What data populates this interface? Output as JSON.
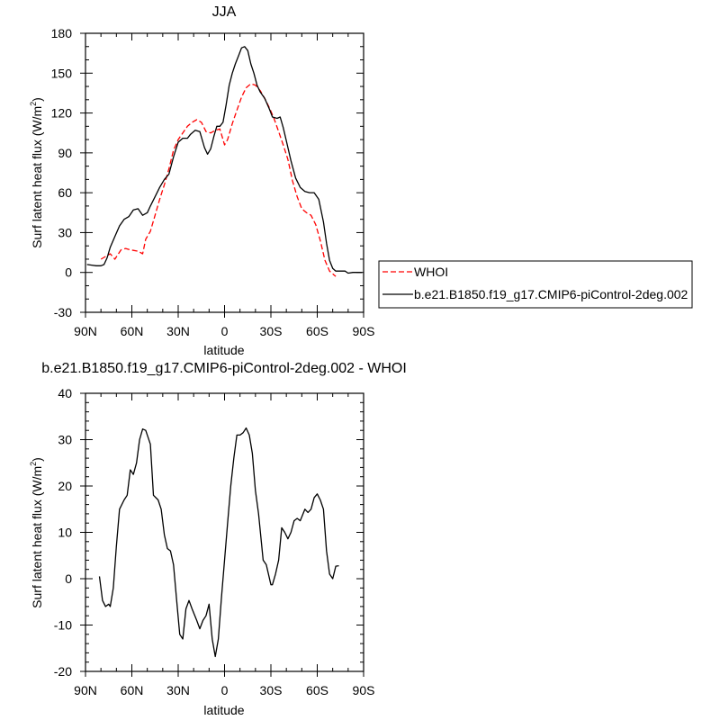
{
  "chart_data": [
    {
      "type": "line",
      "title": "JJA",
      "xlabel": "latitude",
      "ylabel": "Surf latent heat flux (W/m",
      "ylabel_sup": "2",
      "ylabel_close": ")",
      "xlim": [
        90,
        -90
      ],
      "ylim": [
        -30,
        180
      ],
      "xticks": [
        90,
        60,
        30,
        0,
        -30,
        -60,
        -90
      ],
      "xtick_labels": [
        "90N",
        "60N",
        "30N",
        "0",
        "30S",
        "60S",
        "90S"
      ],
      "yticks": [
        -30,
        0,
        30,
        60,
        90,
        120,
        150,
        180
      ],
      "legend_position": "right",
      "series": [
        {
          "name": "WHOI",
          "color": "#ff0000",
          "dash": "dashed",
          "points": [
            [
              80,
              10
            ],
            [
              77,
              12
            ],
            [
              74,
              14
            ],
            [
              71,
              10
            ],
            [
              67,
              17
            ],
            [
              64,
              18
            ],
            [
              61,
              17
            ],
            [
              56,
              16
            ],
            [
              53,
              14
            ],
            [
              51,
              25
            ],
            [
              48,
              31
            ],
            [
              45,
              43
            ],
            [
              42,
              55
            ],
            [
              39,
              66
            ],
            [
              36,
              78
            ],
            [
              33,
              92
            ],
            [
              30,
              100
            ],
            [
              27,
              105
            ],
            [
              24,
              110
            ],
            [
              21,
              113
            ],
            [
              18,
              115
            ],
            [
              15,
              113
            ],
            [
              12,
              106
            ],
            [
              9,
              105
            ],
            [
              6,
              107
            ],
            [
              3,
              108
            ],
            [
              1,
              100
            ],
            [
              0,
              96
            ],
            [
              -2,
              100
            ],
            [
              -5,
              112
            ],
            [
              -8,
              122
            ],
            [
              -11,
              132
            ],
            [
              -14,
              139
            ],
            [
              -17,
              142
            ],
            [
              -20,
              141
            ],
            [
              -23,
              137
            ],
            [
              -26,
              131
            ],
            [
              -29,
              124
            ],
            [
              -32,
              116
            ],
            [
              -35,
              106
            ],
            [
              -38,
              96
            ],
            [
              -41,
              85
            ],
            [
              -44,
              69
            ],
            [
              -47,
              57
            ],
            [
              -50,
              48
            ],
            [
              -53,
              45
            ],
            [
              -56,
              43
            ],
            [
              -59,
              36
            ],
            [
              -62,
              24
            ],
            [
              -65,
              9
            ],
            [
              -68,
              1
            ],
            [
              -71,
              -2
            ],
            [
              -72,
              -3
            ]
          ]
        },
        {
          "name": "b.e21.B1850.f19_g17.CMIP6-piControl-2deg.002",
          "color": "#000000",
          "dash": "solid",
          "points": [
            [
              89,
              6
            ],
            [
              86,
              5.5
            ],
            [
              83,
              5
            ],
            [
              80,
              5
            ],
            [
              78,
              6
            ],
            [
              76,
              11
            ],
            [
              74,
              19
            ],
            [
              71,
              27
            ],
            [
              68,
              35
            ],
            [
              65,
              40
            ],
            [
              62,
              42
            ],
            [
              59,
              47
            ],
            [
              56,
              48
            ],
            [
              53,
              43
            ],
            [
              50,
              45
            ],
            [
              48,
              50
            ],
            [
              45,
              57
            ],
            [
              42,
              64
            ],
            [
              39,
              70
            ],
            [
              36,
              74
            ],
            [
              33,
              87
            ],
            [
              30,
              98
            ],
            [
              27,
              101
            ],
            [
              24,
              101
            ],
            [
              22,
              104
            ],
            [
              19,
              107
            ],
            [
              16,
              106
            ],
            [
              13,
              94
            ],
            [
              11,
              89
            ],
            [
              9,
              93
            ],
            [
              7,
              102
            ],
            [
              5,
              110
            ],
            [
              3,
              110
            ],
            [
              1,
              113
            ],
            [
              -1,
              126
            ],
            [
              -3,
              141
            ],
            [
              -5,
              150
            ],
            [
              -7,
              157
            ],
            [
              -9,
              163
            ],
            [
              -11,
              169
            ],
            [
              -13,
              170
            ],
            [
              -15,
              167
            ],
            [
              -17,
              157
            ],
            [
              -19,
              150
            ],
            [
              -21,
              141
            ],
            [
              -23,
              136
            ],
            [
              -26,
              131
            ],
            [
              -29,
              123
            ],
            [
              -31,
              117
            ],
            [
              -34,
              116
            ],
            [
              -36,
              117
            ],
            [
              -38,
              109
            ],
            [
              -40,
              99
            ],
            [
              -43,
              84
            ],
            [
              -46,
              71
            ],
            [
              -49,
              64
            ],
            [
              -52,
              61
            ],
            [
              -55,
              60
            ],
            [
              -58,
              60
            ],
            [
              -61,
              55
            ],
            [
              -64,
              38
            ],
            [
              -66,
              22
            ],
            [
              -68,
              9
            ],
            [
              -70,
              3
            ],
            [
              -72,
              1
            ],
            [
              -74,
              1
            ],
            [
              -76,
              1
            ],
            [
              -78,
              1
            ],
            [
              -80,
              -0.5
            ],
            [
              -83,
              0
            ],
            [
              -86,
              0
            ],
            [
              -89,
              0
            ]
          ]
        }
      ]
    },
    {
      "type": "line",
      "title": "b.e21.B1850.f19_g17.CMIP6-piControl-2deg.002 - WHOI",
      "xlabel": "latitude",
      "ylabel": "Surf latent heat flux (W/m",
      "ylabel_sup": "2",
      "ylabel_close": ")",
      "xlim": [
        90,
        -90
      ],
      "ylim": [
        -20,
        40
      ],
      "xticks": [
        90,
        60,
        30,
        0,
        -30,
        -60,
        -90
      ],
      "xtick_labels": [
        "90N",
        "60N",
        "30N",
        "0",
        "30S",
        "60S",
        "90S"
      ],
      "yticks": [
        -20,
        -10,
        0,
        10,
        20,
        30,
        40
      ],
      "series": [
        {
          "color": "#000000",
          "dash": "solid",
          "points": [
            [
              81,
              0.5
            ],
            [
              79,
              -4.7
            ],
            [
              77,
              -6
            ],
            [
              75,
              -5.5
            ],
            [
              74,
              -6
            ],
            [
              72,
              -2
            ],
            [
              70,
              7
            ],
            [
              68,
              15
            ],
            [
              65,
              17
            ],
            [
              63,
              18
            ],
            [
              61,
              23.5
            ],
            [
              59,
              22.5
            ],
            [
              57,
              25
            ],
            [
              55,
              30
            ],
            [
              53,
              32.3
            ],
            [
              51,
              32
            ],
            [
              48,
              29
            ],
            [
              46,
              18
            ],
            [
              43,
              17
            ],
            [
              41,
              15
            ],
            [
              39,
              9.5
            ],
            [
              37,
              6.5
            ],
            [
              35,
              6
            ],
            [
              33,
              3
            ],
            [
              31,
              -4.7
            ],
            [
              29,
              -12
            ],
            [
              27,
              -13
            ],
            [
              25,
              -6.5
            ],
            [
              23,
              -4.7
            ],
            [
              21,
              -6.5
            ],
            [
              18,
              -9
            ],
            [
              16,
              -10.8
            ],
            [
              14,
              -9
            ],
            [
              12,
              -8
            ],
            [
              10,
              -5.5
            ],
            [
              8,
              -13
            ],
            [
              6,
              -16.8
            ],
            [
              4,
              -13
            ],
            [
              2,
              -4
            ],
            [
              0,
              4
            ],
            [
              -2,
              12
            ],
            [
              -4,
              20
            ],
            [
              -6,
              26
            ],
            [
              -8,
              31
            ],
            [
              -10,
              31
            ],
            [
              -12,
              31.5
            ],
            [
              -14,
              32.5
            ],
            [
              -16,
              31
            ],
            [
              -18,
              27
            ],
            [
              -20,
              19
            ],
            [
              -22,
              14
            ],
            [
              -25,
              4
            ],
            [
              -27,
              3
            ],
            [
              -30,
              -1.3
            ],
            [
              -31,
              -1.3
            ],
            [
              -33,
              1
            ],
            [
              -35,
              4
            ],
            [
              -37,
              11
            ],
            [
              -39,
              10
            ],
            [
              -41,
              8.6
            ],
            [
              -43,
              10
            ],
            [
              -45,
              12.5
            ],
            [
              -47,
              13
            ],
            [
              -49,
              12.5
            ],
            [
              -52,
              15
            ],
            [
              -54,
              14.3
            ],
            [
              -56,
              15
            ],
            [
              -58,
              17.5
            ],
            [
              -60,
              18.3
            ],
            [
              -62,
              17
            ],
            [
              -64,
              15
            ],
            [
              -66,
              6
            ],
            [
              -68,
              1
            ],
            [
              -70,
              0
            ],
            [
              -72,
              2.7
            ],
            [
              -74,
              2.8
            ]
          ]
        }
      ]
    }
  ],
  "legend": {
    "entries": [
      "WHOI",
      "b.e21.B1850.f19_g17.CMIP6-piControl-2deg.002"
    ]
  }
}
